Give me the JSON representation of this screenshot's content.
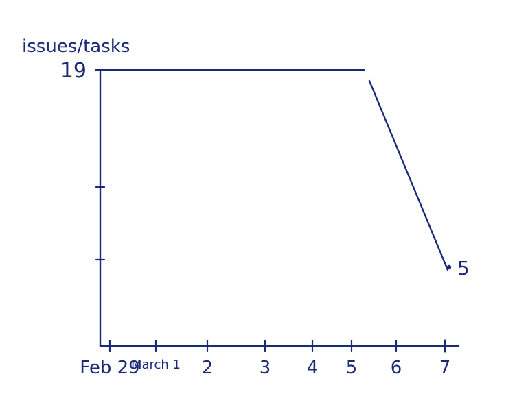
{
  "chart_data": {
    "type": "line",
    "ylabel": "issues/tasks",
    "xlabel": "",
    "title": "",
    "categories": [
      "Feb 29",
      "March 1",
      "2",
      "3",
      "4",
      "5",
      "6",
      "7"
    ],
    "y_tick_labels": [
      {
        "value": 19,
        "label": "19"
      }
    ],
    "y_unlabeled_ticks": [],
    "series": [
      {
        "values": [
          19,
          19,
          19,
          19,
          19,
          19,
          null,
          5
        ],
        "end_label": "5"
      }
    ],
    "grid": false
  },
  "colors": {
    "ink": "#1a2a78",
    "background": "#ffffff"
  }
}
